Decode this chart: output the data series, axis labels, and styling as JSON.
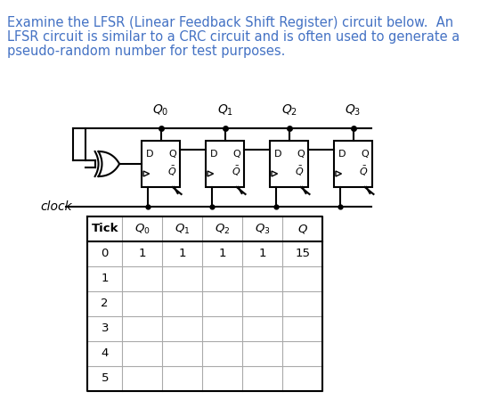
{
  "title_text": "Examine the LFSR (Linear Feedback Shift Register) circuit below.  An\nLFSR circuit is similar to a CRC circuit and is often used to generate a\npseudo-random number for test purposes.",
  "title_color": "#4472c4",
  "title_fontsize": 10.5,
  "background_color": "#ffffff",
  "table_headers": [
    "Tick",
    "Q₀",
    "Q₁",
    "Q₂",
    "Q₃",
    "Q"
  ],
  "table_row0": [
    "0",
    "1",
    "1",
    "1",
    "1",
    "15"
  ],
  "table_rows_empty": [
    "1",
    "2",
    "3",
    "4",
    "5"
  ],
  "clock_label": "clock",
  "Q_labels": [
    "Q₀",
    "Q₁",
    "Q₂",
    "Q₃"
  ]
}
